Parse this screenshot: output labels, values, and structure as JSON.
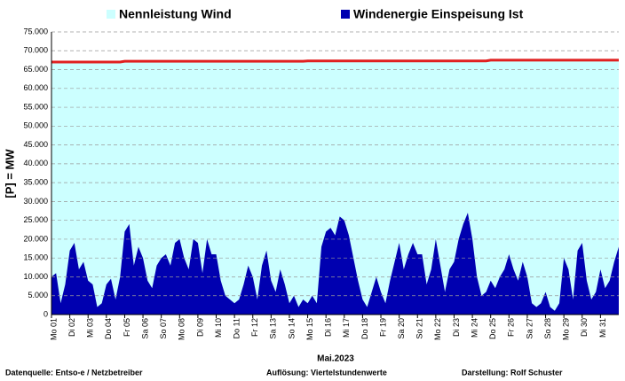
{
  "chart_data": {
    "type": "area",
    "ylabel": "[P] = MW",
    "xlabel": "Mai.2023",
    "footer": [
      "Datenquelle:  Entso-e  / Netzbetreiber",
      "Auflösung: Viertelstundenwerte",
      "Darstellung:  Rolf Schuster"
    ],
    "xlim": [
      0,
      31
    ],
    "xticks": [
      {
        "value": 0,
        "label": "Mo 01"
      },
      {
        "value": 1,
        "label": "Di 02"
      },
      {
        "value": 2,
        "label": "Mi 03"
      },
      {
        "value": 3,
        "label": "Do 04"
      },
      {
        "value": 4,
        "label": "Fr 05"
      },
      {
        "value": 5,
        "label": "Sa 06"
      },
      {
        "value": 6,
        "label": "So 07"
      },
      {
        "value": 7,
        "label": "Mo 08"
      },
      {
        "value": 8,
        "label": "Di 09"
      },
      {
        "value": 9,
        "label": "Mi 10"
      },
      {
        "value": 10,
        "label": "Do 11"
      },
      {
        "value": 11,
        "label": "Fr 12"
      },
      {
        "value": 12,
        "label": "Sa 13"
      },
      {
        "value": 13,
        "label": "So 14"
      },
      {
        "value": 14,
        "label": "Mo 15"
      },
      {
        "value": 15,
        "label": "Di 16"
      },
      {
        "value": 16,
        "label": "Mi 17"
      },
      {
        "value": 17,
        "label": "Do 18"
      },
      {
        "value": 18,
        "label": "Fr 19"
      },
      {
        "value": 19,
        "label": "Sa 20"
      },
      {
        "value": 20,
        "label": "So 21"
      },
      {
        "value": 21,
        "label": "Mo 22"
      },
      {
        "value": 22,
        "label": "Di 23"
      },
      {
        "value": 23,
        "label": "Mi 24"
      },
      {
        "value": 24,
        "label": "Do 25"
      },
      {
        "value": 25,
        "label": "Fr 26"
      },
      {
        "value": 26,
        "label": "Sa 27"
      },
      {
        "value": 27,
        "label": "So 28"
      },
      {
        "value": 28,
        "label": "Mo 29"
      },
      {
        "value": 29,
        "label": "Di 30"
      },
      {
        "value": 30,
        "label": "Mi 31"
      }
    ],
    "ylim": [
      0,
      75000
    ],
    "yticks": [
      0,
      {
        "value": 5000,
        "label": "5.000"
      },
      {
        "value": 10000,
        "label": "10.000"
      },
      {
        "value": 15000,
        "label": "15.000"
      },
      {
        "value": 20000,
        "label": "20.000"
      },
      {
        "value": 25000,
        "label": "25.000"
      },
      {
        "value": 30000,
        "label": "30.000"
      },
      {
        "value": 35000,
        "label": "35.000"
      },
      {
        "value": 40000,
        "label": "40.000"
      },
      {
        "value": 45000,
        "label": "45.000"
      },
      {
        "value": 50000,
        "label": "50.000"
      },
      {
        "value": 55000,
        "label": "55.000"
      },
      {
        "value": 60000,
        "label": "60.000"
      },
      {
        "value": 65000,
        "label": "65.000"
      },
      {
        "value": 70000,
        "label": "70.000"
      },
      {
        "value": 75000,
        "label": "75.000"
      }
    ],
    "grid": true,
    "x": [
      0,
      0.25,
      0.5,
      0.75,
      1,
      1.25,
      1.5,
      1.75,
      2,
      2.25,
      2.5,
      2.75,
      3,
      3.25,
      3.5,
      3.75,
      4,
      4.25,
      4.5,
      4.75,
      5,
      5.25,
      5.5,
      5.75,
      6,
      6.25,
      6.5,
      6.75,
      7,
      7.25,
      7.5,
      7.75,
      8,
      8.25,
      8.5,
      8.75,
      9,
      9.25,
      9.5,
      9.75,
      10,
      10.25,
      10.5,
      10.75,
      11,
      11.25,
      11.5,
      11.75,
      12,
      12.25,
      12.5,
      12.75,
      13,
      13.25,
      13.5,
      13.75,
      14,
      14.25,
      14.5,
      14.75,
      15,
      15.25,
      15.5,
      15.75,
      16,
      16.25,
      16.5,
      16.75,
      17,
      17.25,
      17.5,
      17.75,
      18,
      18.25,
      18.5,
      18.75,
      19,
      19.25,
      19.5,
      19.75,
      20,
      20.25,
      20.5,
      20.75,
      21,
      21.25,
      21.5,
      21.75,
      22,
      22.25,
      22.5,
      22.75,
      23,
      23.25,
      23.5,
      23.75,
      24,
      24.25,
      24.5,
      24.75,
      25,
      25.25,
      25.5,
      25.75,
      26,
      26.25,
      26.5,
      26.75,
      27,
      27.25,
      27.5,
      27.75,
      28,
      28.25,
      28.5,
      28.75,
      29,
      29.25,
      29.5,
      29.75,
      30,
      30.25,
      30.5,
      30.75,
      31
    ],
    "series": [
      {
        "name": "Nennleistung Wind",
        "color": "#ccffff",
        "line_color": "#e02020",
        "values": [
          67000,
          67000,
          67000,
          67000,
          67000,
          67000,
          67000,
          67000,
          67000,
          67000,
          67000,
          67000,
          67000,
          67000,
          67000,
          67000,
          67200,
          67200,
          67200,
          67200,
          67200,
          67200,
          67200,
          67200,
          67200,
          67200,
          67200,
          67200,
          67200,
          67200,
          67200,
          67200,
          67200,
          67200,
          67200,
          67200,
          67200,
          67200,
          67200,
          67200,
          67200,
          67200,
          67200,
          67200,
          67200,
          67200,
          67200,
          67200,
          67200,
          67200,
          67200,
          67200,
          67200,
          67200,
          67200,
          67200,
          67300,
          67300,
          67300,
          67300,
          67300,
          67300,
          67300,
          67300,
          67300,
          67300,
          67300,
          67300,
          67300,
          67300,
          67300,
          67300,
          67300,
          67300,
          67300,
          67300,
          67300,
          67300,
          67300,
          67300,
          67300,
          67300,
          67300,
          67300,
          67300,
          67300,
          67300,
          67300,
          67300,
          67300,
          67300,
          67300,
          67300,
          67300,
          67300,
          67300,
          67500,
          67500,
          67500,
          67500,
          67500,
          67500,
          67500,
          67500,
          67500,
          67500,
          67500,
          67500,
          67500,
          67500,
          67500,
          67500,
          67500,
          67500,
          67500,
          67500,
          67500,
          67500,
          67500,
          67500,
          67500,
          67500,
          67500,
          67500,
          67500
        ]
      },
      {
        "name": "Windenergie Einspeisung Ist",
        "color": "#0000b0",
        "values": [
          10000,
          11000,
          3000,
          8000,
          17000,
          19000,
          12000,
          14000,
          9000,
          8000,
          2000,
          3000,
          8000,
          9500,
          4000,
          10000,
          22000,
          24000,
          13000,
          18000,
          15000,
          9000,
          7000,
          13000,
          15000,
          16000,
          13000,
          19000,
          20000,
          15000,
          12000,
          20000,
          19000,
          11000,
          20000,
          16000,
          16000,
          9000,
          5000,
          4000,
          3000,
          4000,
          8000,
          13000,
          10000,
          4000,
          13000,
          17000,
          9000,
          6000,
          12000,
          8000,
          3000,
          5000,
          2000,
          4000,
          3000,
          5000,
          3000,
          18000,
          22000,
          23000,
          21000,
          26000,
          25000,
          21000,
          15000,
          9000,
          4000,
          2000,
          6000,
          10000,
          6000,
          3000,
          9000,
          14000,
          19000,
          12000,
          16000,
          19000,
          16000,
          16000,
          8000,
          12000,
          20000,
          13000,
          6000,
          12000,
          14000,
          20000,
          24000,
          27000,
          20000,
          10000,
          5000,
          6000,
          9000,
          7000,
          10000,
          12000,
          16000,
          12000,
          9000,
          14000,
          10000,
          3000,
          2000,
          3000,
          6000,
          2000,
          1000,
          3000,
          15000,
          12000,
          4000,
          17000,
          19000,
          9000,
          4000,
          6000,
          12000,
          7000,
          9000,
          14000,
          18000
        ]
      }
    ]
  }
}
